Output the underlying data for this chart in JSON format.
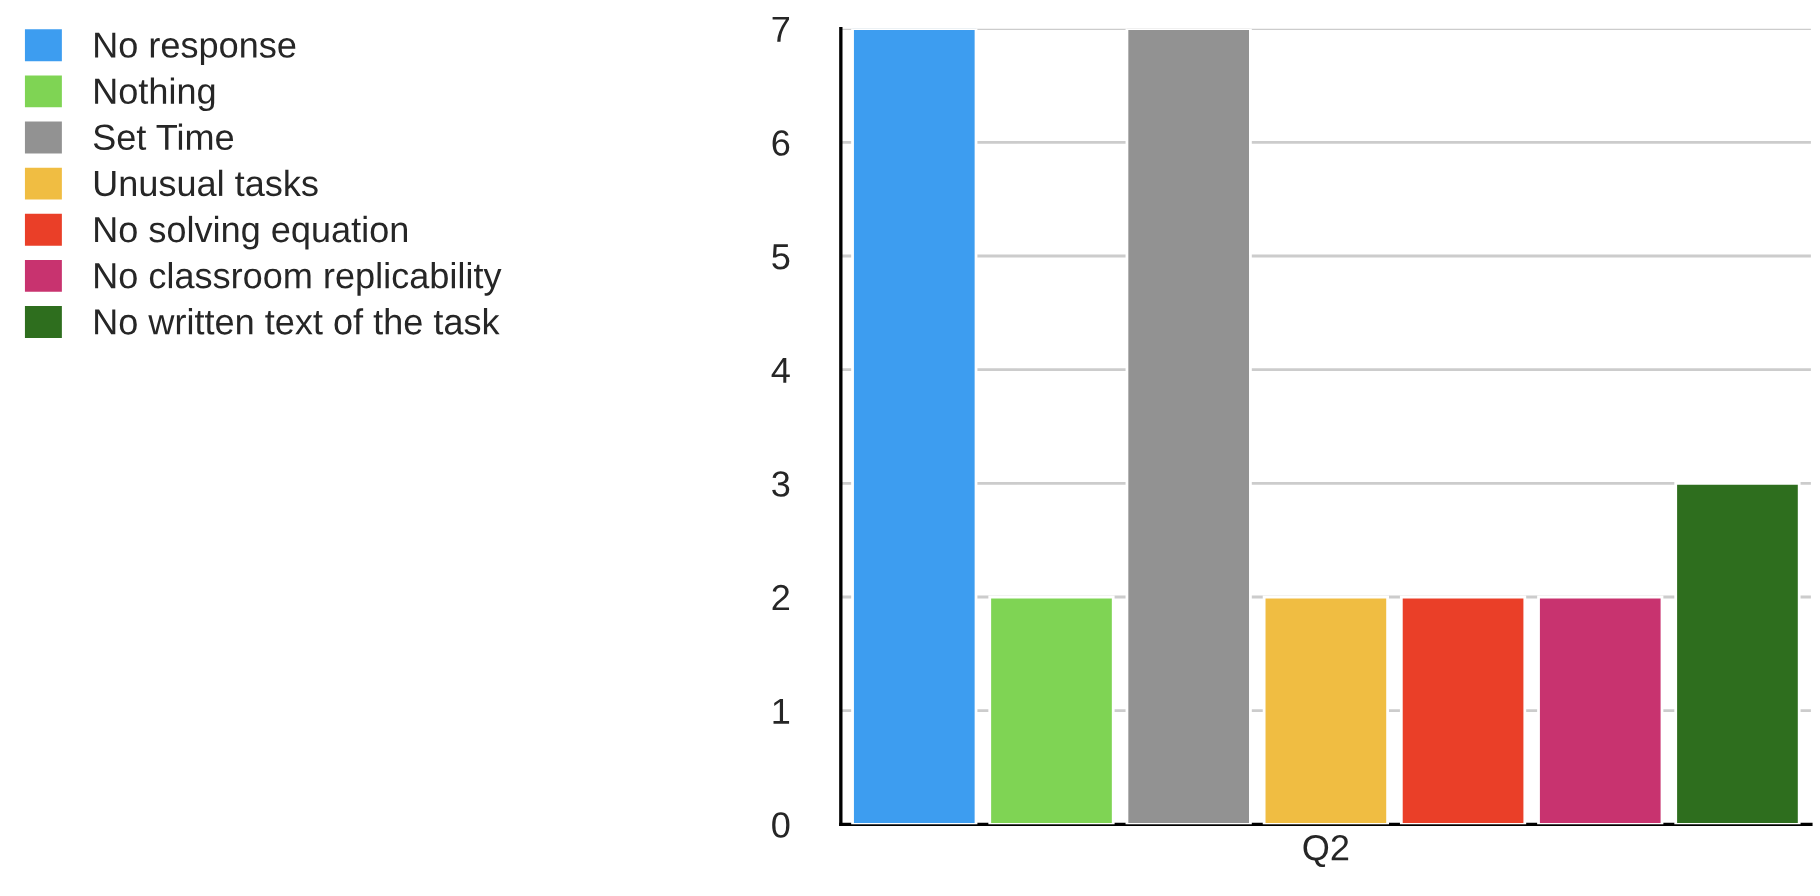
{
  "chart_data": {
    "type": "bar",
    "categories": [
      "Q2"
    ],
    "series": [
      {
        "name": "No response",
        "color": "#3d9df0",
        "values": [
          7
        ]
      },
      {
        "name": "Nothing",
        "color": "#7fd454",
        "values": [
          2
        ]
      },
      {
        "name": "Set Time",
        "color": "#929292",
        "values": [
          7
        ]
      },
      {
        "name": "Unusual tasks",
        "color": "#f0bd42",
        "values": [
          2
        ]
      },
      {
        "name": "No solving equation",
        "color": "#ea3f28",
        "values": [
          2
        ]
      },
      {
        "name": "No classroom replicability",
        "color": "#c8336f",
        "values": [
          2
        ]
      },
      {
        "name": "No written text of the task",
        "color": "#2e6e1e",
        "values": [
          3
        ]
      }
    ],
    "ylim": [
      0,
      7
    ],
    "yticks": [
      0,
      1,
      2,
      3,
      4,
      5,
      6,
      7
    ],
    "grid": "y",
    "legend": "top left"
  }
}
